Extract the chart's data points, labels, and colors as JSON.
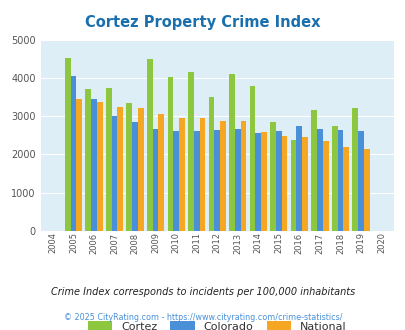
{
  "title": "Cortez Property Crime Index",
  "title_color": "#1a6faf",
  "years": [
    2004,
    2005,
    2006,
    2007,
    2008,
    2009,
    2010,
    2011,
    2012,
    2013,
    2014,
    2015,
    2016,
    2017,
    2018,
    2019,
    2020
  ],
  "cortez": [
    0,
    4530,
    3700,
    3730,
    3350,
    4500,
    4020,
    4150,
    3490,
    4100,
    3780,
    2850,
    2380,
    3150,
    2730,
    3210,
    0
  ],
  "colorado": [
    0,
    4060,
    3440,
    3000,
    2860,
    2660,
    2620,
    2620,
    2650,
    2660,
    2560,
    2620,
    2750,
    2670,
    2640,
    2600,
    0
  ],
  "national": [
    0,
    3450,
    3360,
    3250,
    3220,
    3060,
    2960,
    2940,
    2870,
    2870,
    2590,
    2490,
    2460,
    2360,
    2200,
    2140,
    0
  ],
  "bar_width": 0.28,
  "ylim": [
    0,
    5000
  ],
  "yticks": [
    0,
    1000,
    2000,
    3000,
    4000,
    5000
  ],
  "cortez_color": "#8dc63f",
  "colorado_color": "#4a90d9",
  "national_color": "#f5a623",
  "bg_color": "#ddeef6",
  "grid_color": "#ffffff",
  "footnote": "Crime Index corresponds to incidents per 100,000 inhabitants",
  "copyright": "© 2025 CityRating.com - https://www.cityrating.com/crime-statistics/",
  "footnote_color": "#222222",
  "copyright_color": "#4a90d9"
}
